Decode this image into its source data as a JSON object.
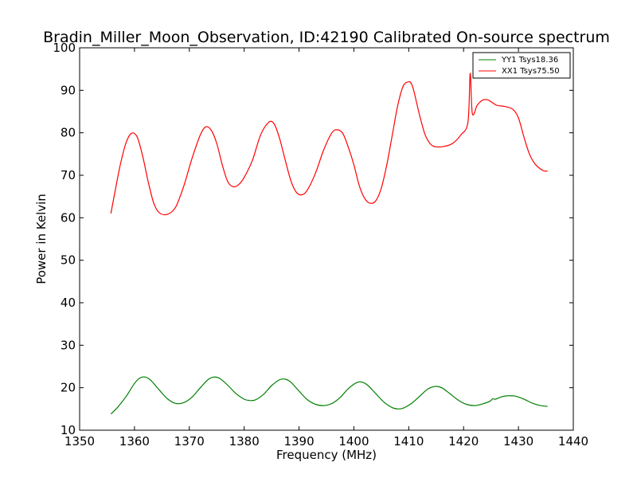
{
  "chart_data": {
    "type": "line",
    "title": "Bradin_Miller_Moon_Observation, ID:42190 Calibrated On-source spectrum",
    "xlabel": "Frequency (MHz)",
    "ylabel": "Power in Kelvin",
    "xlim": [
      1350,
      1440
    ],
    "ylim": [
      10,
      100
    ],
    "xticks": [
      1350,
      1360,
      1370,
      1380,
      1390,
      1400,
      1410,
      1420,
      1430,
      1440
    ],
    "yticks": [
      10,
      20,
      30,
      40,
      50,
      60,
      70,
      80,
      90,
      100
    ],
    "grid": false,
    "legend_position": "top-right",
    "series": [
      {
        "name": "YY1 Tsys18.36",
        "color": "#008000",
        "x": [
          1355.7,
          1357,
          1358.5,
          1360,
          1361,
          1362,
          1363,
          1364.5,
          1366,
          1367.5,
          1369,
          1370.5,
          1372,
          1373.5,
          1374.5,
          1375.5,
          1377,
          1378.5,
          1380,
          1381,
          1382,
          1383.5,
          1385,
          1386.5,
          1387.5,
          1388.5,
          1390,
          1391.5,
          1393,
          1394.5,
          1396,
          1397.5,
          1399,
          1400.5,
          1401.5,
          1402.5,
          1404,
          1405.5,
          1407,
          1408,
          1409,
          1410.5,
          1412,
          1413.5,
          1414.8,
          1416,
          1417.5,
          1419,
          1420.5,
          1422,
          1423.5,
          1424.8,
          1425.3,
          1425.8,
          1427,
          1428,
          1429.5,
          1431,
          1432.5,
          1434,
          1435.3
        ],
        "values": [
          13.8,
          15.5,
          18.0,
          21.0,
          22.3,
          22.5,
          21.7,
          19.5,
          17.4,
          16.3,
          16.5,
          17.8,
          20.0,
          22.0,
          22.5,
          22.2,
          20.6,
          18.6,
          17.3,
          17.0,
          17.1,
          18.4,
          20.5,
          21.9,
          22.0,
          21.3,
          19.2,
          17.2,
          16.1,
          15.8,
          16.3,
          17.7,
          19.8,
          21.2,
          21.3,
          20.6,
          18.6,
          16.6,
          15.3,
          15.0,
          15.2,
          16.3,
          18.0,
          19.7,
          20.3,
          20.0,
          18.6,
          17.1,
          16.1,
          15.8,
          16.2,
          16.8,
          17.4,
          17.3,
          17.9,
          18.1,
          18.0,
          17.3,
          16.4,
          15.8,
          15.6
        ]
      },
      {
        "name": "XX1 Tsys75.50",
        "color": "#ff0000",
        "x": [
          1355.7,
          1356.5,
          1357.5,
          1358.5,
          1359.5,
          1360.5,
          1361.5,
          1362.5,
          1363.5,
          1364.5,
          1366,
          1367.5,
          1369,
          1370.5,
          1372,
          1373,
          1374,
          1375,
          1376,
          1377,
          1378,
          1379,
          1380,
          1381.5,
          1383,
          1384.5,
          1385.5,
          1386.5,
          1387.5,
          1388.5,
          1389.5,
          1390.5,
          1391.5,
          1393,
          1394.5,
          1396,
          1397,
          1398,
          1399,
          1400,
          1401,
          1402,
          1403,
          1404,
          1405,
          1406,
          1407,
          1408,
          1409,
          1410,
          1410.5,
          1411,
          1412,
          1413,
          1414,
          1415,
          1416.5,
          1418,
          1419.5,
          1420.8,
          1421.2,
          1421.6,
          1422.5,
          1423.5,
          1424.5,
          1426,
          1427.5,
          1429,
          1430,
          1431,
          1432,
          1433,
          1434,
          1434.7,
          1435.3
        ],
        "values": [
          61.0,
          66.5,
          73.0,
          77.8,
          79.9,
          79.0,
          74.5,
          68.5,
          63.5,
          61.2,
          60.8,
          62.5,
          67.5,
          74.0,
          79.5,
          81.4,
          80.6,
          77.5,
          72.5,
          68.5,
          67.3,
          67.8,
          69.5,
          73.5,
          79.5,
          82.5,
          82.0,
          78.5,
          73.5,
          68.8,
          66.0,
          65.4,
          66.5,
          70.5,
          76.0,
          80.0,
          80.7,
          79.8,
          76.5,
          72.5,
          67.5,
          64.5,
          63.4,
          64.0,
          67.0,
          72.5,
          79.5,
          86.5,
          91.0,
          92.0,
          91.5,
          89.5,
          84.0,
          79.5,
          77.3,
          76.7,
          76.8,
          77.5,
          79.5,
          82.5,
          94.0,
          84.5,
          86.5,
          87.7,
          87.7,
          86.5,
          86.2,
          85.5,
          83.5,
          79.0,
          75.0,
          72.7,
          71.5,
          71.0,
          71.0
        ]
      }
    ]
  }
}
